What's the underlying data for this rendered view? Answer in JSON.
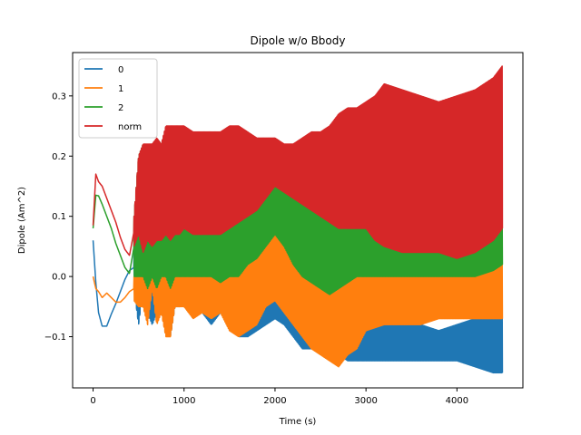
{
  "chart_data": {
    "type": "line",
    "title": "Dipole w/o Bbody",
    "xlabel": "Time (s)",
    "ylabel": "Dipole (Am^2)",
    "xlim": [
      -225,
      4725
    ],
    "ylim": [
      -0.185,
      0.372
    ],
    "xticks": [
      0,
      1000,
      2000,
      3000,
      4000
    ],
    "xtick_labels": [
      "0",
      "1000",
      "2000",
      "3000",
      "4000"
    ],
    "yticks": [
      -0.1,
      0.0,
      0.1,
      0.2,
      0.3
    ],
    "ytick_labels": [
      "−0.1",
      "0.0",
      "0.1",
      "0.2",
      "0.3"
    ],
    "grid": false,
    "legend_position": "upper-left",
    "series": [
      {
        "name": "0",
        "color": "#1f77b4",
        "x": [
          0,
          30,
          60,
          100,
          150,
          200,
          250,
          300,
          350,
          400,
          450,
          500,
          550,
          600,
          650,
          700,
          750,
          800,
          850,
          900,
          950,
          1000,
          1100,
          1200,
          1300,
          1400,
          1500,
          1600,
          1700,
          1800,
          1900,
          2000,
          2100,
          2200,
          2300,
          2400,
          2500,
          2600,
          2700,
          2800,
          2900,
          3000,
          3200,
          3400,
          3600,
          3800,
          4000,
          4200,
          4400,
          4500
        ],
        "upper": [
          0.07,
          0.0,
          -0.05,
          -0.08,
          -0.08,
          -0.06,
          -0.04,
          -0.02,
          0.0,
          0.02,
          0.05,
          0.12,
          0.18,
          0.12,
          0.1,
          0.08,
          0.15,
          0.2,
          0.1,
          0.1,
          0.12,
          0.14,
          0.1,
          0.06,
          0.08,
          0.06,
          0.1,
          0.08,
          0.04,
          0.02,
          0.01,
          0.02,
          0.05,
          0.06,
          0.04,
          0.06,
          0.03,
          0.0,
          -0.01,
          -0.02,
          -0.03,
          -0.04,
          -0.06,
          -0.07,
          -0.08,
          -0.09,
          -0.08,
          -0.07,
          -0.05,
          -0.04
        ],
        "lower": [
          0.05,
          -0.02,
          -0.07,
          -0.085,
          -0.085,
          -0.065,
          -0.05,
          -0.03,
          -0.01,
          0.0,
          -0.02,
          -0.08,
          -0.02,
          -0.06,
          -0.08,
          -0.06,
          -0.05,
          -0.04,
          -0.1,
          -0.05,
          -0.05,
          -0.03,
          -0.05,
          -0.06,
          -0.08,
          -0.06,
          -0.08,
          -0.1,
          -0.1,
          -0.09,
          -0.08,
          -0.07,
          -0.08,
          -0.1,
          -0.12,
          -0.12,
          -0.12,
          -0.13,
          -0.13,
          -0.14,
          -0.14,
          -0.14,
          -0.14,
          -0.14,
          -0.14,
          -0.14,
          -0.14,
          -0.15,
          -0.16,
          -0.16
        ]
      },
      {
        "name": "1",
        "color": "#ff7f0e",
        "x": [
          0,
          30,
          60,
          100,
          150,
          200,
          250,
          300,
          350,
          400,
          450,
          500,
          550,
          600,
          650,
          700,
          750,
          800,
          850,
          900,
          950,
          1000,
          1100,
          1200,
          1300,
          1400,
          1500,
          1600,
          1700,
          1800,
          1900,
          2000,
          2100,
          2200,
          2300,
          2400,
          2500,
          2600,
          2700,
          2800,
          2900,
          3000,
          3200,
          3400,
          3600,
          3800,
          4000,
          4200,
          4400,
          4500
        ],
        "upper": [
          0.01,
          -0.01,
          -0.02,
          -0.03,
          -0.02,
          -0.03,
          -0.04,
          -0.04,
          -0.03,
          -0.02,
          0.0,
          0.05,
          0.12,
          0.1,
          0.07,
          0.1,
          0.12,
          0.1,
          0.11,
          0.1,
          0.1,
          0.11,
          0.1,
          0.09,
          0.1,
          0.1,
          0.08,
          0.06,
          0.06,
          0.05,
          0.06,
          0.07,
          0.09,
          0.06,
          0.04,
          0.04,
          0.03,
          0.02,
          0.02,
          0.01,
          0.01,
          0.0,
          0.0,
          0.0,
          0.0,
          0.0,
          0.01,
          0.01,
          0.02,
          0.03
        ],
        "lower": [
          -0.01,
          -0.03,
          -0.03,
          -0.04,
          -0.035,
          -0.04,
          -0.045,
          -0.045,
          -0.04,
          -0.03,
          -0.04,
          -0.05,
          -0.05,
          -0.08,
          -0.02,
          -0.08,
          -0.06,
          -0.1,
          -0.1,
          -0.05,
          -0.05,
          -0.05,
          -0.07,
          -0.06,
          -0.07,
          -0.06,
          -0.09,
          -0.1,
          -0.09,
          -0.08,
          -0.05,
          -0.04,
          -0.06,
          -0.08,
          -0.1,
          -0.12,
          -0.13,
          -0.14,
          -0.15,
          -0.13,
          -0.12,
          -0.09,
          -0.08,
          -0.08,
          -0.08,
          -0.07,
          -0.07,
          -0.07,
          -0.07,
          -0.07
        ]
      },
      {
        "name": "2",
        "color": "#2ca02c",
        "x": [
          0,
          30,
          60,
          100,
          150,
          200,
          250,
          300,
          350,
          400,
          450,
          500,
          550,
          600,
          650,
          700,
          750,
          800,
          850,
          900,
          950,
          1000,
          1100,
          1200,
          1300,
          1400,
          1500,
          1600,
          1700,
          1800,
          1900,
          2000,
          2100,
          2200,
          2300,
          2400,
          2500,
          2600,
          2700,
          2800,
          2900,
          3000,
          3200,
          3400,
          3600,
          3800,
          4000,
          4200,
          4400,
          4500
        ],
        "upper": [
          0.1,
          0.15,
          0.148,
          0.13,
          0.11,
          0.09,
          0.06,
          0.04,
          0.02,
          0.01,
          0.1,
          0.2,
          0.22,
          0.2,
          0.22,
          0.18,
          0.22,
          0.24,
          0.15,
          0.24,
          0.24,
          0.24,
          0.24,
          0.23,
          0.22,
          0.22,
          0.23,
          0.23,
          0.22,
          0.21,
          0.22,
          0.22,
          0.21,
          0.21,
          0.22,
          0.23,
          0.23,
          0.24,
          0.24,
          0.22,
          0.2,
          0.16,
          0.1,
          0.08,
          0.06,
          0.05,
          0.04,
          0.04,
          0.06,
          0.1
        ],
        "lower": [
          0.06,
          0.12,
          0.12,
          0.11,
          0.09,
          0.07,
          0.05,
          0.03,
          0.01,
          0.0,
          0.0,
          0.0,
          0.0,
          -0.02,
          0.0,
          -0.02,
          0.0,
          0.0,
          -0.02,
          0.0,
          0.0,
          0.0,
          0.0,
          0.0,
          0.0,
          -0.01,
          0.0,
          0.0,
          0.02,
          0.03,
          0.05,
          0.07,
          0.05,
          0.02,
          0.0,
          -0.01,
          -0.02,
          -0.03,
          -0.02,
          -0.01,
          0.0,
          0.0,
          0.0,
          0.0,
          0.0,
          0.0,
          0.0,
          0.0,
          0.01,
          0.02
        ]
      },
      {
        "name": "norm",
        "color": "#d62728",
        "x": [
          0,
          30,
          60,
          100,
          150,
          200,
          250,
          300,
          350,
          400,
          450,
          500,
          550,
          600,
          650,
          700,
          750,
          800,
          850,
          900,
          950,
          1000,
          1100,
          1200,
          1300,
          1400,
          1500,
          1600,
          1700,
          1800,
          1900,
          2000,
          2100,
          2200,
          2300,
          2400,
          2500,
          2600,
          2700,
          2800,
          2900,
          3000,
          3100,
          3200,
          3400,
          3600,
          3800,
          4000,
          4200,
          4400,
          4500
        ],
        "upper": [
          0.1,
          0.2,
          0.165,
          0.16,
          0.14,
          0.12,
          0.1,
          0.07,
          0.05,
          0.04,
          0.1,
          0.2,
          0.22,
          0.22,
          0.22,
          0.23,
          0.22,
          0.25,
          0.25,
          0.25,
          0.25,
          0.25,
          0.24,
          0.24,
          0.24,
          0.24,
          0.25,
          0.25,
          0.24,
          0.23,
          0.23,
          0.23,
          0.22,
          0.22,
          0.23,
          0.24,
          0.24,
          0.25,
          0.27,
          0.28,
          0.28,
          0.29,
          0.3,
          0.32,
          0.31,
          0.3,
          0.29,
          0.3,
          0.31,
          0.33,
          0.35
        ],
        "lower": [
          0.07,
          0.14,
          0.15,
          0.14,
          0.12,
          0.1,
          0.08,
          0.06,
          0.04,
          0.03,
          0.05,
          0.07,
          0.04,
          0.06,
          0.05,
          0.06,
          0.06,
          0.07,
          0.06,
          0.07,
          0.07,
          0.08,
          0.07,
          0.07,
          0.07,
          0.07,
          0.08,
          0.09,
          0.1,
          0.11,
          0.13,
          0.15,
          0.14,
          0.13,
          0.12,
          0.11,
          0.1,
          0.09,
          0.08,
          0.08,
          0.08,
          0.08,
          0.06,
          0.05,
          0.04,
          0.04,
          0.04,
          0.03,
          0.04,
          0.06,
          0.08
        ]
      }
    ]
  }
}
